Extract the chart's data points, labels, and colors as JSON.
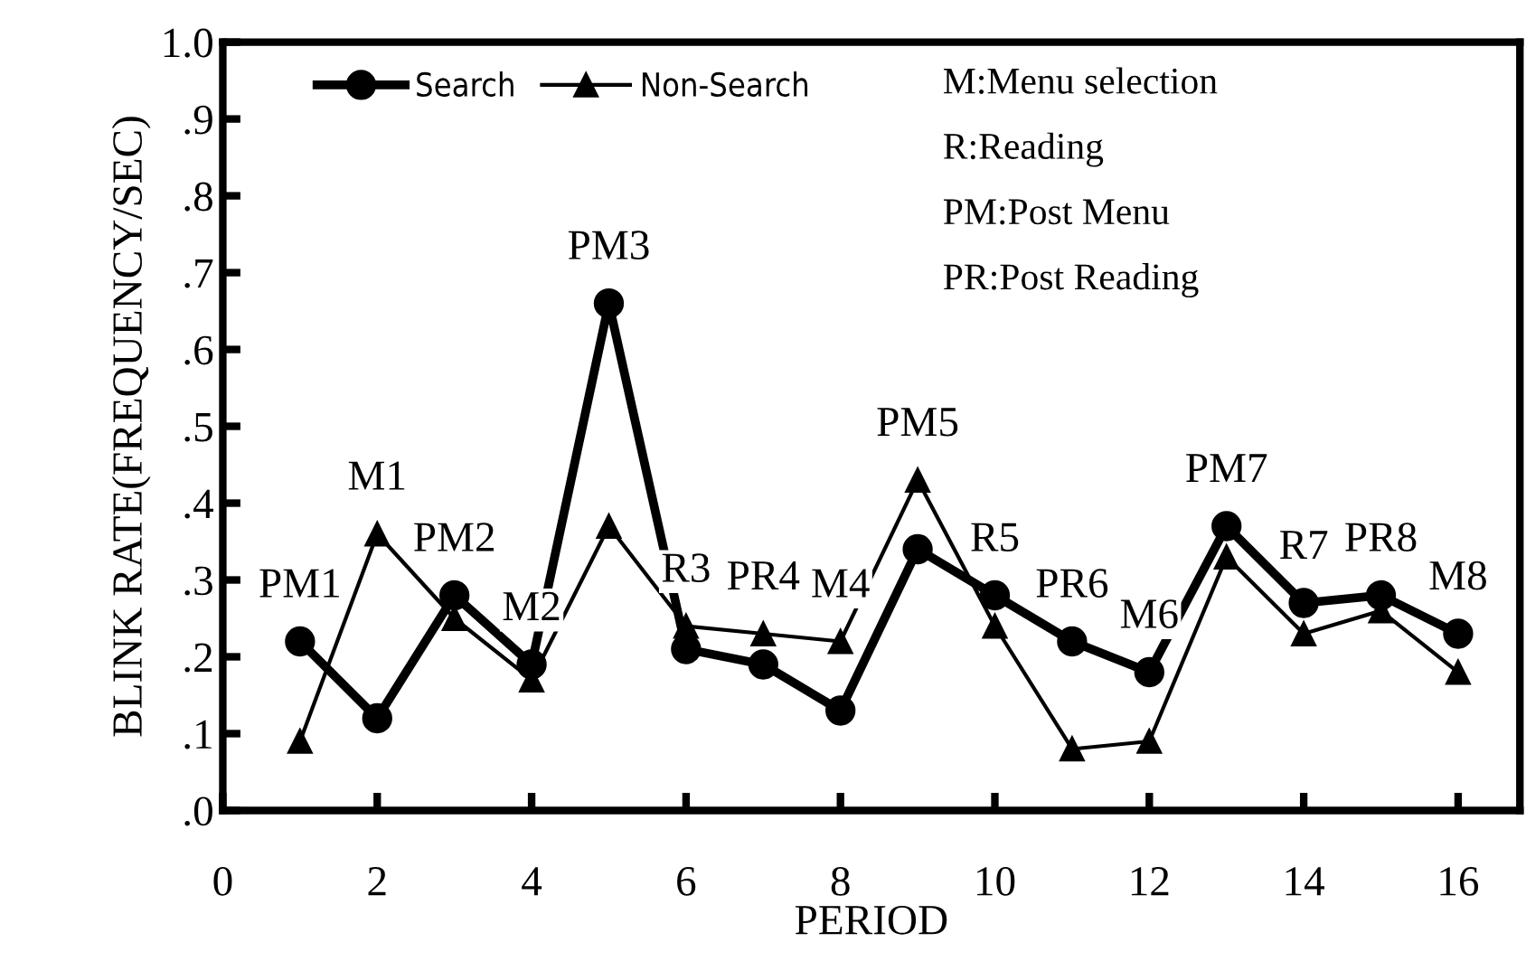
{
  "chart_data": {
    "type": "line",
    "xlabel": "PERIOD",
    "ylabel": "BLINK RATE(FREQUENCY/SEC)",
    "x": [
      1,
      2,
      3,
      4,
      5,
      6,
      7,
      8,
      9,
      10,
      11,
      12,
      13,
      14,
      15,
      16
    ],
    "series": [
      {
        "name": "Search",
        "color": "#000000",
        "marker": "circle",
        "values": [
          0.22,
          0.12,
          0.28,
          0.19,
          0.66,
          0.21,
          0.19,
          0.13,
          0.34,
          0.28,
          0.22,
          0.18,
          0.37,
          0.27,
          0.28,
          0.23
        ]
      },
      {
        "name": "Non-Search",
        "color": "#000000",
        "marker": "triangle",
        "values": [
          0.09,
          0.36,
          0.25,
          0.17,
          0.37,
          0.24,
          0.23,
          0.22,
          0.43,
          0.24,
          0.08,
          0.09,
          0.33,
          0.23,
          0.26,
          0.18
        ]
      }
    ],
    "xlim": [
      0,
      16.8
    ],
    "xticks": [
      0,
      2,
      4,
      6,
      8,
      10,
      12,
      14,
      16
    ],
    "ylim": [
      0,
      1.0
    ],
    "yticks": [
      {
        "value": 0,
        "label": ".0"
      },
      {
        "value": 0.1,
        "label": ".1"
      },
      {
        "value": 0.2,
        "label": ".2"
      },
      {
        "value": 0.3,
        "label": ".3"
      },
      {
        "value": 0.4,
        "label": ".4"
      },
      {
        "value": 0.5,
        "label": ".5"
      },
      {
        "value": 0.6,
        "label": ".6"
      },
      {
        "value": 0.7,
        "label": ".7"
      },
      {
        "value": 0.8,
        "label": ".8"
      },
      {
        "value": 0.9,
        "label": ".9"
      },
      {
        "value": 1.0,
        "label": "1.0"
      }
    ],
    "grid": false,
    "legend": "top left",
    "line_style": "solid",
    "annotations": [
      {
        "text": "PM1",
        "x": 1,
        "y": 0.22
      },
      {
        "text": "M1",
        "x": 2,
        "y": 0.36
      },
      {
        "text": "PM2",
        "x": 3,
        "y": 0.28
      },
      {
        "text": "M2",
        "x": 4,
        "y": 0.19
      },
      {
        "text": "PM3",
        "x": 5,
        "y": 0.66
      },
      {
        "text": "R3",
        "x": 6,
        "y": 0.24
      },
      {
        "text": "PR4",
        "x": 7,
        "y": 0.23
      },
      {
        "text": "M4",
        "x": 8,
        "y": 0.22
      },
      {
        "text": "PM5",
        "x": 9,
        "y": 0.43
      },
      {
        "text": "R5",
        "x": 10,
        "y": 0.28
      },
      {
        "text": "PR6",
        "x": 11,
        "y": 0.22
      },
      {
        "text": "M6",
        "x": 12,
        "y": 0.18
      },
      {
        "text": "PM7",
        "x": 13,
        "y": 0.37
      },
      {
        "text": "R7",
        "x": 14,
        "y": 0.27
      },
      {
        "text": "PR8",
        "x": 15,
        "y": 0.28
      },
      {
        "text": "M8",
        "x": 16,
        "y": 0.23
      },
      "M:Menu selection",
      "R:Reading",
      "PM:Post Menu",
      "PR:Post Reading"
    ]
  }
}
